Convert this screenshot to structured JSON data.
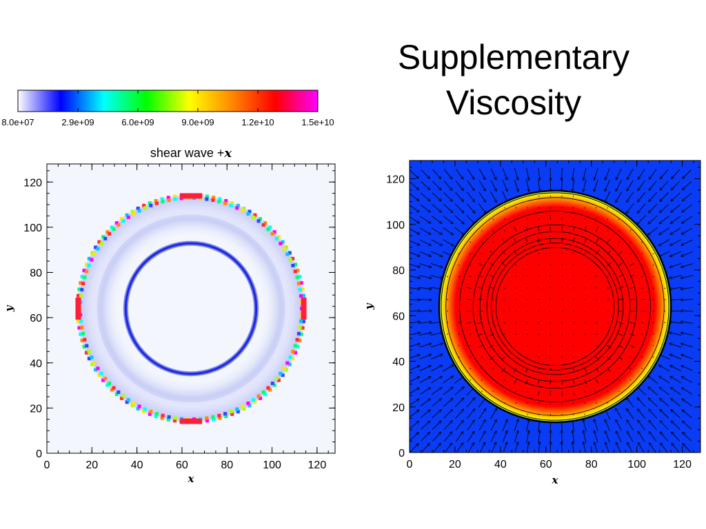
{
  "slide": {
    "title_line1": "Supplementary",
    "title_line2": "Viscosity"
  },
  "colorbar": {
    "tick_labels": [
      "8.0e+07",
      "2.9e+09",
      "6.0e+09",
      "9.0e+09",
      "1.2e+10",
      "1.5e+10"
    ],
    "colors": [
      "#ffffff",
      "#0000ff",
      "#00ffff",
      "#00ff00",
      "#ffff00",
      "#ff8800",
      "#ff0000",
      "#ff00ff"
    ]
  },
  "chart_data": [
    {
      "type": "heatmap",
      "title_text": "shear wave +",
      "title_var": "x",
      "xlabel": "x",
      "ylabel": "y",
      "xlim": [
        0,
        128
      ],
      "ylim": [
        0,
        128
      ],
      "xticks": [
        "0",
        "20",
        "40",
        "60",
        "80",
        "100",
        "120"
      ],
      "yticks": [
        "0",
        "20",
        "40",
        "60",
        "80",
        "100",
        "120"
      ],
      "background_color": "#f3f6fd",
      "features": {
        "center": [
          64,
          64
        ],
        "inner_ring_radius": 29,
        "diffuse_ring_radius": 43,
        "outer_ring_radius": 51
      }
    },
    {
      "type": "heatmap",
      "xlabel": "x",
      "ylabel": "y",
      "xlim": [
        0,
        128
      ],
      "ylim": [
        0,
        128
      ],
      "xticks": [
        "0",
        "20",
        "40",
        "60",
        "80",
        "100",
        "120"
      ],
      "yticks": [
        "0",
        "20",
        "40",
        "60",
        "80",
        "100",
        "120"
      ],
      "background_color": "#0a3cf5",
      "disk_color": "#ff0000",
      "edge_color": "#ffe600",
      "features": {
        "center": [
          64,
          64
        ],
        "disk_radius": 51,
        "contour_radii": [
          26,
          28,
          30,
          33,
          36,
          42,
          48
        ]
      },
      "overlay": "velocity vector arrows pointing inward outside the disk"
    }
  ]
}
